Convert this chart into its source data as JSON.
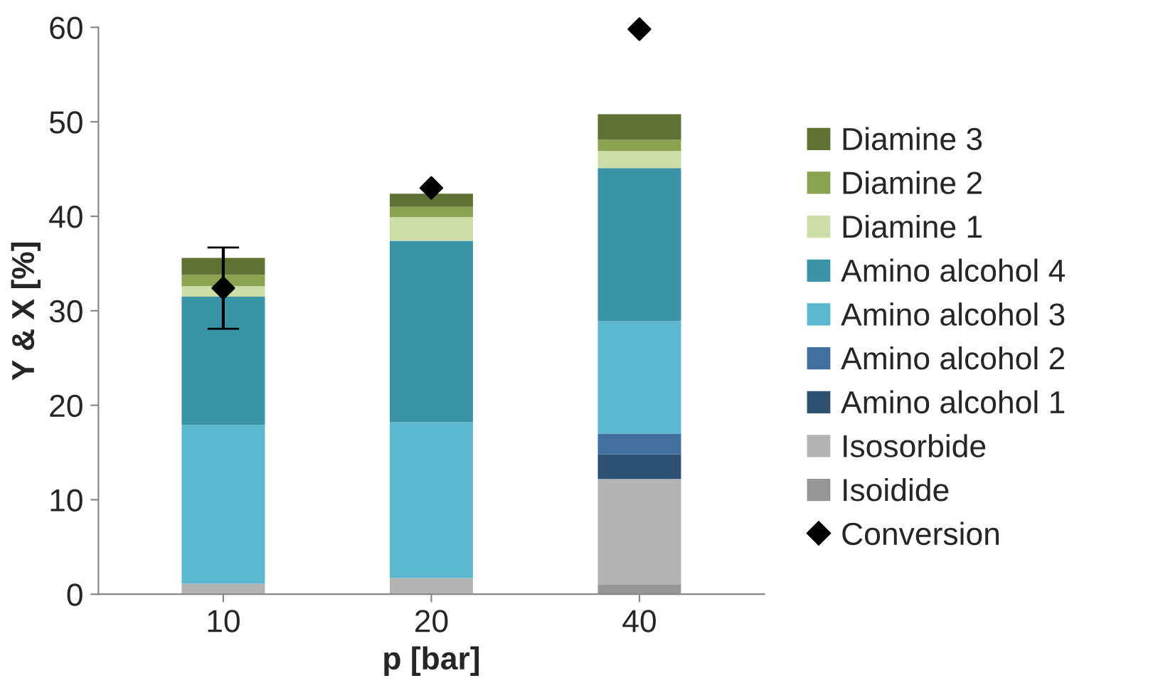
{
  "chart_data": {
    "type": "bar",
    "stacked": true,
    "xlabel": "p [bar]",
    "ylabel": "Y & X [%]",
    "categories": [
      "10",
      "20",
      "40"
    ],
    "ylim": [
      0,
      60
    ],
    "yticks": [
      0,
      10,
      20,
      30,
      40,
      50,
      60
    ],
    "grid": false,
    "legend": "right",
    "series": [
      {
        "name": "Isoidide",
        "color": "#969696",
        "values": [
          0,
          0,
          1.0
        ]
      },
      {
        "name": "Isosorbide",
        "color": "#b3b3b3",
        "values": [
          1.1,
          1.7,
          11.2
        ]
      },
      {
        "name": "Amino alcohol 1",
        "color": "#2e5172",
        "values": [
          0,
          0,
          2.6
        ]
      },
      {
        "name": "Amino alcohol 2",
        "color": "#4170a0",
        "values": [
          0,
          0,
          2.2
        ]
      },
      {
        "name": "Amino alcohol 3",
        "color": "#5bb8d0",
        "values": [
          16.8,
          16.5,
          11.9
        ]
      },
      {
        "name": "Amino alcohol 4",
        "color": "#3a94a8",
        "values": [
          13.6,
          19.2,
          16.2
        ]
      },
      {
        "name": "Diamine 1",
        "color": "#ccdda8",
        "values": [
          1.1,
          2.5,
          1.8
        ]
      },
      {
        "name": "Diamine 2",
        "color": "#8ba350",
        "values": [
          1.2,
          1.1,
          1.2
        ]
      },
      {
        "name": "Diamine 3",
        "color": "#5f7133",
        "values": [
          1.8,
          1.4,
          2.7
        ]
      },
      {
        "name": "Conversion",
        "type": "scatter",
        "marker": "diamond",
        "color": "#000000",
        "x": [
          "10",
          "20",
          "40"
        ],
        "values": [
          32.4,
          43.0,
          59.8
        ],
        "errors": [
          [
            28.1,
            36.7
          ],
          null,
          null
        ]
      }
    ]
  }
}
